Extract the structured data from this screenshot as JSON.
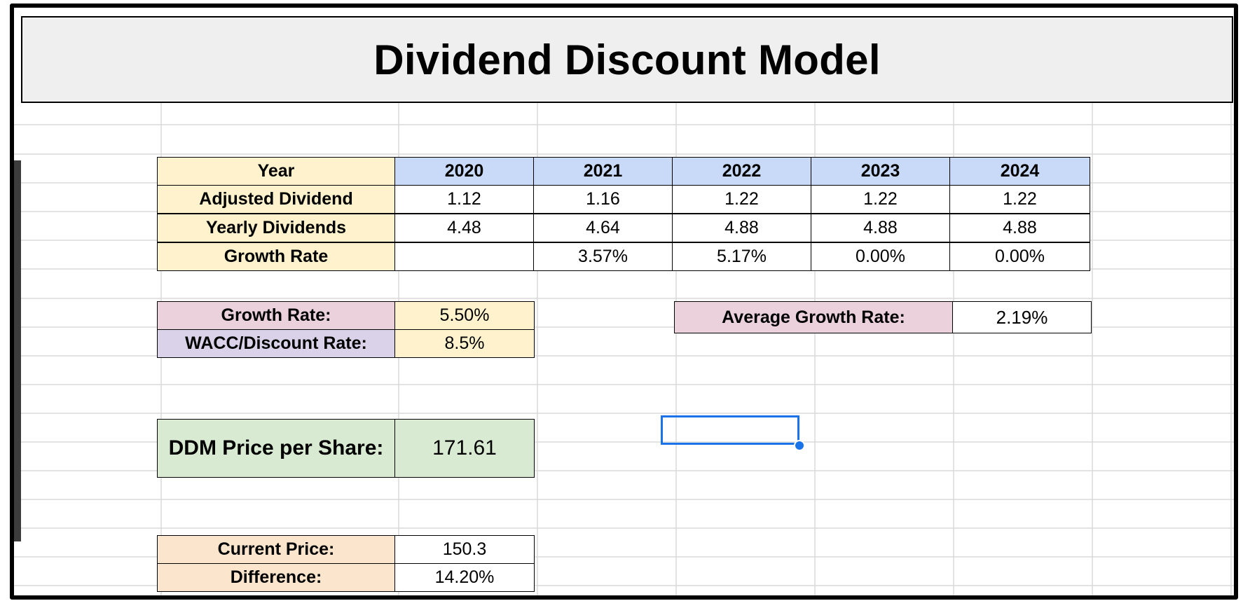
{
  "title": "Dividend Discount Model",
  "table": {
    "row_headers": [
      "Year",
      "Adjusted Dividend",
      "Yearly Dividends",
      "Growth Rate"
    ],
    "years": [
      "2020",
      "2021",
      "2022",
      "2023",
      "2024"
    ],
    "adjusted_dividend": [
      "1.12",
      "1.16",
      "1.22",
      "1.22",
      "1.22"
    ],
    "yearly_dividends": [
      "4.48",
      "4.64",
      "4.88",
      "4.88",
      "4.88"
    ],
    "growth_rate": [
      "",
      "3.57%",
      "5.17%",
      "0.00%",
      "0.00%"
    ]
  },
  "inputs": {
    "growth_rate_label": "Growth Rate:",
    "growth_rate_value": "5.50%",
    "wacc_label": "WACC/Discount Rate:",
    "wacc_value": "8.5%"
  },
  "average": {
    "label": "Average Growth Rate:",
    "value": "2.19%"
  },
  "ddm": {
    "label": "DDM Price per Share:",
    "value": "171.61"
  },
  "comparison": {
    "current_price_label": "Current Price:",
    "current_price_value": "150.3",
    "difference_label": "Difference:",
    "difference_value": "14.20%"
  },
  "colors": {
    "title_bg": "#efefef",
    "row_header_bg": "#fff2cc",
    "year_header_bg": "#c9daf8",
    "growth_label_bg": "#ead1dc",
    "wacc_label_bg": "#d9d2e9",
    "ddm_bg": "#d9ead3",
    "comparison_label_bg": "#fce5cd",
    "selection": "#1a73e8"
  }
}
